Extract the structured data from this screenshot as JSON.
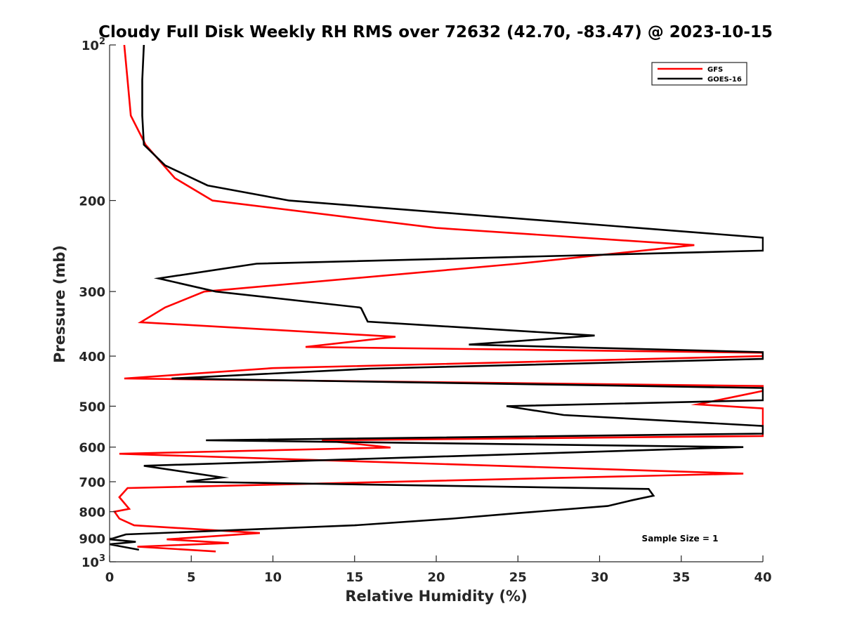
{
  "chart_data": {
    "type": "line",
    "title": "Cloudy Full Disk Weekly RH RMS over 72632 (42.70, -83.47) @ 2023-10-15",
    "xlabel": "Relative Humidity (%)",
    "ylabel": "Pressure (mb)",
    "xlim": [
      0,
      40
    ],
    "ylim": [
      100,
      1000
    ],
    "y_scale": "log",
    "y_reversed": true,
    "x_ticks": [
      "0",
      "5",
      "10",
      "15",
      "20",
      "25",
      "30",
      "35",
      "40"
    ],
    "y_ticks": [
      {
        "value": 100,
        "base": "10",
        "sup": "2"
      },
      {
        "value": 200,
        "label": "200"
      },
      {
        "value": 300,
        "label": "300"
      },
      {
        "value": 400,
        "label": "400"
      },
      {
        "value": 500,
        "label": "500"
      },
      {
        "value": 600,
        "label": "600"
      },
      {
        "value": 700,
        "label": "700"
      },
      {
        "value": 800,
        "label": "800"
      },
      {
        "value": 900,
        "label": "900"
      },
      {
        "value": 1000,
        "base": "10",
        "sup": "3"
      }
    ],
    "legend_position": "top-right",
    "annotation": "Sample Size = 1",
    "series": [
      {
        "name": "GFS",
        "color": "#ff0000",
        "x": [
          0.9,
          1.1,
          1.3,
          2.2,
          4.0,
          6.3,
          20.0,
          35.8,
          25.0,
          5.8,
          3.4,
          1.9,
          17.5,
          12.0,
          40,
          40,
          10.0,
          0.9,
          40,
          40,
          36.0,
          40,
          40,
          40,
          13.0,
          17.2,
          0.6,
          38.8,
          1.1,
          0.6,
          1.2,
          0.3,
          0.6,
          1.5,
          9.2,
          3.5,
          7.3,
          1.7,
          6.5
        ],
        "y": [
          100,
          117,
          137,
          156,
          181,
          200,
          226,
          244,
          265,
          300,
          322,
          344,
          367,
          384,
          394,
          400,
          422,
          442,
          457,
          467,
          496,
          505,
          519,
          571,
          582,
          601,
          618,
          675,
          720,
          750,
          790,
          800,
          825,
          850,
          880,
          905,
          920,
          935,
          955
        ]
      },
      {
        "name": "GOES-16",
        "color": "#000000",
        "x": [
          2.1,
          2.0,
          2.0,
          2.1,
          3.4,
          6.0,
          11.0,
          40,
          40,
          9.0,
          3.0,
          6.5,
          15.3,
          15.4,
          15.8,
          29.7,
          22.0,
          40,
          40,
          16.0,
          3.8,
          40,
          40,
          24.3,
          27.8,
          40,
          40,
          5.9,
          38.8,
          2.1,
          6.9,
          4.7,
          33.0,
          33.3,
          32.0,
          30.5,
          25.0,
          21.0,
          15.0,
          1.0,
          0.0,
          1.6,
          0.0,
          1.8
        ],
        "y": [
          100,
          117,
          137,
          156,
          171,
          187,
          200,
          236,
          250,
          265,
          283,
          300,
          322,
          323,
          343,
          365,
          380,
          393,
          405,
          423,
          442,
          461,
          487,
          500,
          520,
          546,
          565,
          582,
          600,
          652,
          687,
          700,
          723,
          745,
          760,
          780,
          805,
          825,
          850,
          885,
          905,
          915,
          925,
          948
        ]
      }
    ]
  }
}
